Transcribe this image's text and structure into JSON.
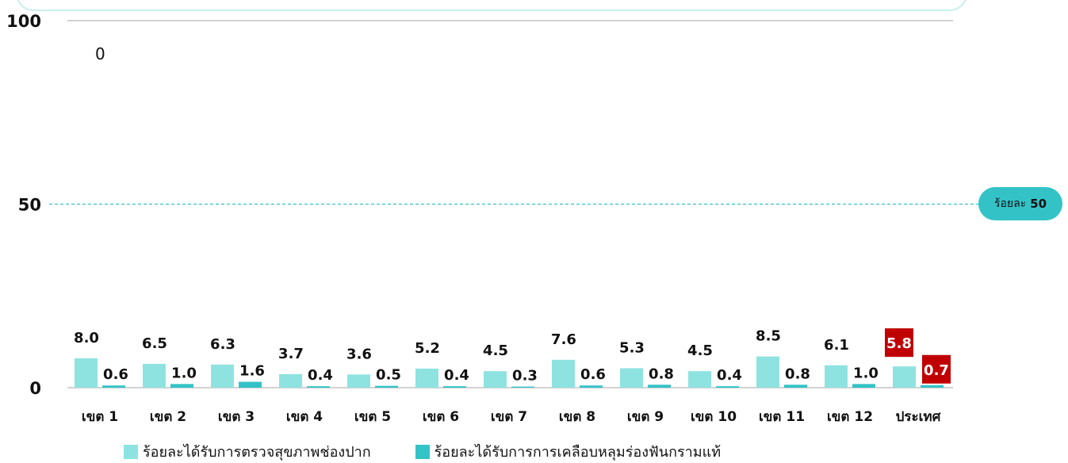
{
  "chart_data": {
    "type": "bar",
    "categories": [
      "เขต 1",
      "เขต 2",
      "เขต 3",
      "เขต 4",
      "เขต 5",
      "เขต 6",
      "เขต 7",
      "เขต 8",
      "เขต 9",
      "เขต 10",
      "เขต 11",
      "เขต 12",
      "ประเทศ"
    ],
    "series": [
      {
        "name": "ร้อยละได้รับการตรวจสุขภาพช่องปาก",
        "color": "#8ee3e0",
        "values": [
          8.0,
          6.5,
          6.3,
          3.7,
          3.6,
          5.2,
          4.5,
          7.6,
          5.3,
          4.5,
          8.5,
          6.1,
          5.8
        ],
        "labels": [
          "8.0",
          "6.5",
          "6.3",
          "3.7",
          "3.6",
          "5.2",
          "4.5",
          "7.6",
          "5.3",
          "4.5",
          "8.5",
          "6.1",
          "5.8"
        ]
      },
      {
        "name": "ร้อยละได้รับการการเคลือบหลุมร่องฟันกรามแท้",
        "color": "#33c3c7",
        "values": [
          0.6,
          1.0,
          1.6,
          0.4,
          0.5,
          0.4,
          0.3,
          0.6,
          0.8,
          0.4,
          0.8,
          1.0,
          0.7
        ],
        "labels": [
          "0.6",
          "1.0",
          "1.6",
          "0.4",
          "0.5",
          "0.4",
          "0.3",
          "0.6",
          "0.8",
          "0.4",
          "0.8",
          "1.0",
          "0.7"
        ]
      }
    ],
    "highlight_category": "ประเทศ",
    "highlight_color": "#c00000",
    "ylim": [
      0,
      100
    ],
    "yticks": [
      {
        "value": 0,
        "label": "0"
      },
      {
        "value": 50,
        "label": "50"
      },
      {
        "value": 100,
        "label": "100"
      }
    ],
    "reference_line": {
      "value": 50,
      "label_prefix": "ร้อยละ",
      "label_value": "50",
      "color": "#33c3c7"
    },
    "annotation": "0",
    "legend_position": "bottom"
  }
}
